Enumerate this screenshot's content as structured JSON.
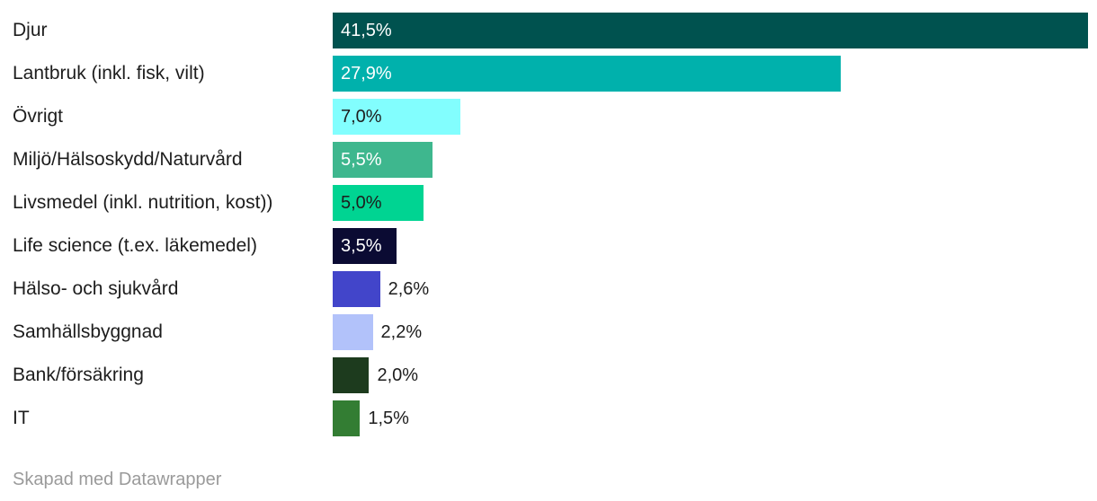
{
  "chart_data": {
    "type": "bar",
    "orientation": "horizontal",
    "value_format": "percent-comma-decimal",
    "max_value": 41.5,
    "grid": false,
    "legend": false,
    "categories": [
      "Djur",
      "Lantbruk (inkl. fisk, vilt)",
      "Övrigt",
      "Miljö/Hälsoskydd/Naturvård",
      "Livsmedel (inkl. nutrition, kost))",
      "Life science (t.ex. läkemedel)",
      "Hälso- och sjukvård",
      "Samhällsbyggnad",
      "Bank/försäkring",
      "IT"
    ],
    "values": [
      41.5,
      27.9,
      7.0,
      5.5,
      5.0,
      3.5,
      2.6,
      2.2,
      2.0,
      1.5
    ],
    "rows": [
      {
        "label": "Djur",
        "value": 41.5,
        "display": "41,5%",
        "color": "#00524f",
        "value_inside": true,
        "value_color": "#ffffff"
      },
      {
        "label": "Lantbruk (inkl. fisk, vilt)",
        "value": 27.9,
        "display": "27,9%",
        "color": "#00b1ac",
        "value_inside": true,
        "value_color": "#ffffff"
      },
      {
        "label": "Övrigt",
        "value": 7.0,
        "display": "7,0%",
        "color": "#82fefe",
        "value_inside": true,
        "value_color": "#1d1d1d"
      },
      {
        "label": "Miljö/Hälsoskydd/Naturvård",
        "value": 5.5,
        "display": "5,5%",
        "color": "#3eb78e",
        "value_inside": true,
        "value_color": "#ffffff"
      },
      {
        "label": "Livsmedel (inkl. nutrition, kost))",
        "value": 5.0,
        "display": "5,0%",
        "color": "#00d492",
        "value_inside": true,
        "value_color": "#1d1d1d"
      },
      {
        "label": "Life science (t.ex. läkemedel)",
        "value": 3.5,
        "display": "3,5%",
        "color": "#0b0b33",
        "value_inside": true,
        "value_color": "#ffffff"
      },
      {
        "label": "Hälso- och sjukvård",
        "value": 2.6,
        "display": "2,6%",
        "color": "#4245ca",
        "value_inside": false,
        "value_color": "#1d1d1d"
      },
      {
        "label": "Samhällsbyggnad",
        "value": 2.2,
        "display": "2,2%",
        "color": "#b2c2fa",
        "value_inside": false,
        "value_color": "#1d1d1d"
      },
      {
        "label": "Bank/försäkring",
        "value": 2.0,
        "display": "2,0%",
        "color": "#1d3b1e",
        "value_inside": false,
        "value_color": "#1d1d1d"
      },
      {
        "label": "IT",
        "value": 1.5,
        "display": "1,5%",
        "color": "#337d33",
        "value_inside": false,
        "value_color": "#1d1d1d"
      }
    ]
  },
  "footer": {
    "text": "Skapad med Datawrapper"
  },
  "colors": {
    "background": "#ffffff",
    "label_text": "#1d1d1d",
    "footer_text": "#9a9a9a"
  }
}
